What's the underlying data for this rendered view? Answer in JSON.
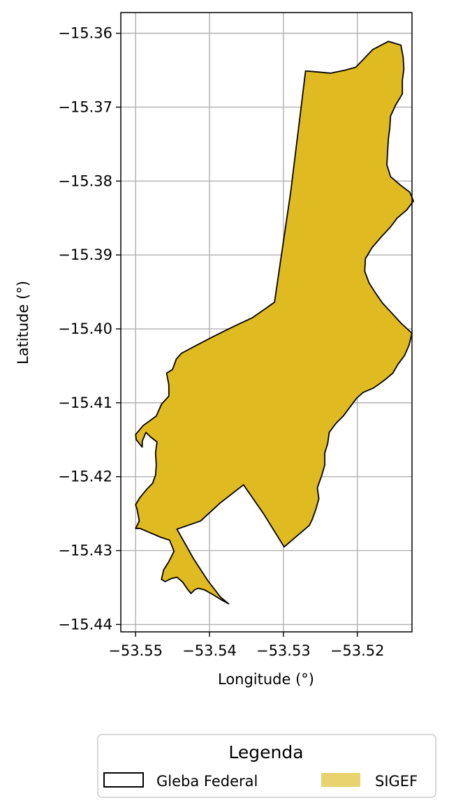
{
  "chart_data": {
    "type": "map",
    "xlabel": "Longitude (°)",
    "ylabel": "Latitude (°)",
    "xlim": [
      -53.552,
      -53.5126
    ],
    "ylim": [
      -15.441,
      -15.3572
    ],
    "xticks": [
      -53.55,
      -53.54,
      -53.53,
      -53.52
    ],
    "xtick_labels": [
      "−53.55",
      "−53.54",
      "−53.53",
      "−53.52"
    ],
    "yticks": [
      -15.36,
      -15.37,
      -15.38,
      -15.39,
      -15.4,
      -15.41,
      -15.42,
      -15.43,
      -15.44
    ],
    "ytick_labels": [
      "−15.36",
      "−15.37",
      "−15.38",
      "−15.39",
      "−15.40",
      "−15.41",
      "−15.42",
      "−15.43",
      "−15.44"
    ],
    "grid": true,
    "legend": {
      "title": "Legenda",
      "placement": "bottom-center",
      "entries": [
        {
          "label": "Gleba Federal",
          "style": "outline",
          "edge_color": "#000000"
        },
        {
          "label": "SIGEF",
          "style": "fill",
          "color": "#e8d36e"
        }
      ]
    },
    "layers": [
      {
        "name": "SIGEF",
        "fill": "#dfbb21",
        "stroke": "#000000",
        "polygon": [
          [
            -53.5202,
            -15.3646
          ],
          [
            -53.5179,
            -15.3622
          ],
          [
            -53.5158,
            -15.3611
          ],
          [
            -53.5141,
            -15.3616
          ],
          [
            -53.5138,
            -15.3632
          ],
          [
            -53.5137,
            -15.3648
          ],
          [
            -53.5139,
            -15.3664
          ],
          [
            -53.5139,
            -15.3682
          ],
          [
            -53.5148,
            -15.3697
          ],
          [
            -53.5155,
            -15.3712
          ],
          [
            -53.5156,
            -15.3728
          ],
          [
            -53.5158,
            -15.3744
          ],
          [
            -53.5159,
            -15.376
          ],
          [
            -53.516,
            -15.3778
          ],
          [
            -53.5155,
            -15.3794
          ],
          [
            -53.5141,
            -15.3806
          ],
          [
            -53.5129,
            -15.3815
          ],
          [
            -53.5124,
            -15.3827
          ],
          [
            -53.5133,
            -15.3839
          ],
          [
            -53.5146,
            -15.385
          ],
          [
            -53.5155,
            -15.3862
          ],
          [
            -53.5167,
            -15.3875
          ],
          [
            -53.518,
            -15.389
          ],
          [
            -53.5189,
            -15.3905
          ],
          [
            -53.519,
            -15.3922
          ],
          [
            -53.5184,
            -15.3938
          ],
          [
            -53.5175,
            -15.3952
          ],
          [
            -53.5166,
            -15.3965
          ],
          [
            -53.5154,
            -15.3978
          ],
          [
            -53.5141,
            -15.3992
          ],
          [
            -53.5126,
            -15.4006
          ],
          [
            -53.513,
            -15.4022
          ],
          [
            -53.5136,
            -15.4036
          ],
          [
            -53.5145,
            -15.4048
          ],
          [
            -53.5152,
            -15.406
          ],
          [
            -53.5164,
            -15.407
          ],
          [
            -53.5178,
            -15.408
          ],
          [
            -53.5192,
            -15.4086
          ],
          [
            -53.5201,
            -15.4094
          ],
          [
            -53.521,
            -15.4106
          ],
          [
            -53.5219,
            -15.4118
          ],
          [
            -53.5229,
            -15.4128
          ],
          [
            -53.5238,
            -15.414
          ],
          [
            -53.524,
            -15.4155
          ],
          [
            -53.5244,
            -15.4168
          ],
          [
            -53.5244,
            -15.4184
          ],
          [
            -53.5248,
            -15.4198
          ],
          [
            -53.5254,
            -15.4215
          ],
          [
            -53.5252,
            -15.423
          ],
          [
            -53.5256,
            -15.4244
          ],
          [
            -53.5261,
            -15.4258
          ],
          [
            -53.5265,
            -15.4266
          ],
          [
            -53.5299,
            -15.4295
          ],
          [
            -53.5327,
            -15.425
          ],
          [
            -53.5354,
            -15.4211
          ],
          [
            -53.5386,
            -15.4236
          ],
          [
            -53.5412,
            -15.426
          ],
          [
            -53.5444,
            -15.4271
          ],
          [
            -53.5421,
            -15.4312
          ],
          [
            -53.5402,
            -15.4341
          ],
          [
            -53.5385,
            -15.4363
          ],
          [
            -53.5374,
            -15.4372
          ],
          [
            -53.5385,
            -15.4366
          ],
          [
            -53.5398,
            -15.4358
          ],
          [
            -53.5407,
            -15.4353
          ],
          [
            -53.5415,
            -15.4351
          ],
          [
            -53.542,
            -15.4353
          ],
          [
            -53.5425,
            -15.4358
          ],
          [
            -53.543,
            -15.4352
          ],
          [
            -53.5436,
            -15.4343
          ],
          [
            -53.5444,
            -15.4336
          ],
          [
            -53.5452,
            -15.4338
          ],
          [
            -53.546,
            -15.4342
          ],
          [
            -53.5465,
            -15.4339
          ],
          [
            -53.5462,
            -15.4326
          ],
          [
            -53.5455,
            -15.4315
          ],
          [
            -53.5448,
            -15.4301
          ],
          [
            -53.5454,
            -15.4286
          ],
          [
            -53.5466,
            -15.4282
          ],
          [
            -53.548,
            -15.4276
          ],
          [
            -53.5494,
            -15.427
          ],
          [
            -53.55,
            -15.427
          ],
          [
            -53.5495,
            -15.426
          ],
          [
            -53.5498,
            -15.4244
          ],
          [
            -53.55,
            -15.4238
          ],
          [
            -53.5494,
            -15.4228
          ],
          [
            -53.5484,
            -15.4216
          ],
          [
            -53.5477,
            -15.4209
          ],
          [
            -53.5473,
            -15.4198
          ],
          [
            -53.5472,
            -15.4184
          ],
          [
            -53.5473,
            -15.4168
          ],
          [
            -53.5471,
            -15.4153
          ],
          [
            -53.548,
            -15.4146
          ],
          [
            -53.5486,
            -15.414
          ],
          [
            -53.5491,
            -15.4152
          ],
          [
            -53.5491,
            -15.416
          ],
          [
            -53.5499,
            -15.415
          ],
          [
            -53.55,
            -15.4143
          ],
          [
            -53.549,
            -15.4131
          ],
          [
            -53.5472,
            -15.4118
          ],
          [
            -53.5465,
            -15.4102
          ],
          [
            -53.5455,
            -15.4091
          ],
          [
            -53.5455,
            -15.4076
          ],
          [
            -53.5458,
            -15.406
          ],
          [
            -53.545,
            -15.4055
          ],
          [
            -53.5445,
            -15.4041
          ],
          [
            -53.5438,
            -15.4033
          ],
          [
            -53.5421,
            -15.4024
          ],
          [
            -53.5394,
            -15.401
          ],
          [
            -53.5368,
            -15.3997
          ],
          [
            -53.5342,
            -15.3985
          ],
          [
            -53.5312,
            -15.3964
          ],
          [
            -53.529,
            -15.3814
          ],
          [
            -53.527,
            -15.3651
          ],
          [
            -53.5258,
            -15.3652
          ],
          [
            -53.5236,
            -15.3654
          ],
          [
            -53.5217,
            -15.365
          ],
          [
            -53.5202,
            -15.3646
          ]
        ]
      }
    ]
  }
}
